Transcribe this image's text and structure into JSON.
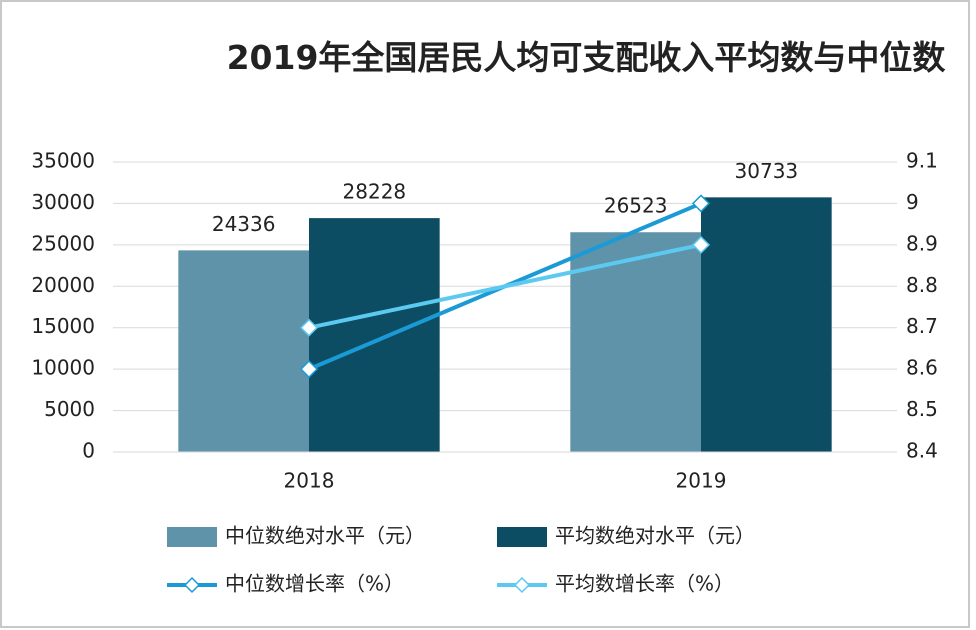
{
  "chart_data": {
    "type": "bar_line",
    "title": "2019年全国居民人均可支配收入平均数与中位数",
    "categories": [
      "2018",
      "2019"
    ],
    "series": [
      {
        "name": "中位数绝对水平（元）",
        "type": "bar",
        "color": "#5f93aa",
        "values": [
          24336,
          26523
        ]
      },
      {
        "name": "平均数绝对水平（元）",
        "type": "bar",
        "color": "#0c4d63",
        "values": [
          28228,
          30733
        ]
      },
      {
        "name": "中位数增长率（%）",
        "type": "line",
        "axis": "y2",
        "color": "#1b9ad6",
        "values": [
          8.6,
          9.0
        ]
      },
      {
        "name": "平均数增长率（%）",
        "type": "line",
        "axis": "y2",
        "color": "#5cc9f0",
        "values": [
          8.7,
          8.9
        ]
      }
    ],
    "ylim": [
      0,
      35000
    ],
    "yticks": [
      0,
      5000,
      10000,
      15000,
      20000,
      25000,
      30000,
      35000
    ],
    "y2lim": [
      8.4,
      9.1
    ],
    "y2ticks": [
      8.4,
      8.5,
      8.6,
      8.7,
      8.8,
      8.9,
      9,
      9.1
    ],
    "grid": true,
    "legend": "bottom"
  }
}
